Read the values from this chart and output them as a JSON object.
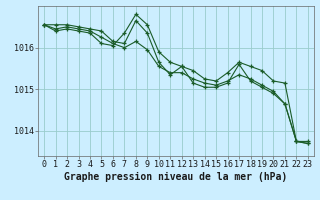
{
  "background_color": "#cceeff",
  "plot_bg_color": "#cceeff",
  "grid_color": "#99cccc",
  "line_color": "#1a5c28",
  "marker_color": "#1a5c28",
  "xlabel": "Graphe pression niveau de la mer (hPa)",
  "xlabel_fontsize": 7,
  "tick_fontsize": 6,
  "ylim": [
    1013.4,
    1017.0
  ],
  "yticks": [
    1014,
    1015,
    1016
  ],
  "xlim": [
    -0.5,
    23.5
  ],
  "xticks": [
    0,
    1,
    2,
    3,
    4,
    5,
    6,
    7,
    8,
    9,
    10,
    11,
    12,
    13,
    14,
    15,
    16,
    17,
    18,
    19,
    20,
    21,
    22,
    23
  ],
  "series": [
    [
      1016.55,
      1016.55,
      1016.55,
      1016.5,
      1016.45,
      1016.4,
      1016.15,
      1016.1,
      1016.65,
      1016.35,
      1015.65,
      1015.35,
      1015.55,
      1015.15,
      1015.05,
      1015.05,
      1015.15,
      1015.6,
      1015.2,
      1015.05,
      1014.9,
      1014.65,
      1013.75,
      1013.7
    ],
    [
      1016.55,
      1016.4,
      1016.45,
      1016.4,
      1016.35,
      1016.1,
      1016.05,
      1016.35,
      1016.8,
      1016.55,
      1015.9,
      1015.65,
      1015.55,
      1015.45,
      1015.25,
      1015.2,
      1015.4,
      1015.65,
      1015.55,
      1015.45,
      1015.2,
      1015.15,
      1013.75,
      1013.75
    ],
    [
      1016.55,
      1016.45,
      1016.5,
      1016.45,
      1016.4,
      1016.25,
      1016.1,
      1016.0,
      1016.15,
      1015.95,
      1015.55,
      1015.4,
      1015.4,
      1015.25,
      1015.15,
      1015.1,
      1015.2,
      1015.35,
      1015.25,
      1015.1,
      1014.95,
      1014.65,
      1013.75,
      1013.7
    ]
  ]
}
